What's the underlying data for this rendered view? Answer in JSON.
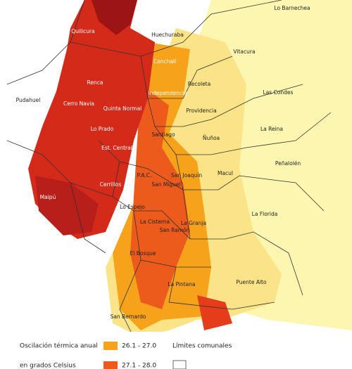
{
  "map": {
    "labels": [
      "Lo Barnechea",
      "Quilicura",
      "Huechuraba",
      "Conchalí",
      "Vitacura",
      "Renca",
      "Recoleta",
      "Independencia",
      "Pudahuel",
      "Cerro Navia",
      "Las Condes",
      "Quinta Normal",
      "Providencia",
      "Lo Prado",
      "Santiago",
      "Ñuñoa",
      "La Reina",
      "Est. Central",
      "Peñalolén",
      "P.A.C.",
      "San Joaquín",
      "Macul",
      "San Miguel",
      "Cerrillos",
      "Maipú",
      "Lo Espejo",
      "La Florida",
      "La Cisterna",
      "La Granja",
      "San Ramón",
      "El Bosque",
      "La Pintana",
      "Puente Alto",
      "San Bernardo"
    ]
  },
  "legend": {
    "title_line1": "Oscilación térmica anual",
    "title_line2": "en grados Celsius",
    "items": [
      {
        "label": "26.1 - 27.0",
        "color": "#f7a21b"
      },
      {
        "label": "27.1 - 28.0",
        "color": "#ec5a1c"
      }
    ],
    "boundary_label": "Límites comunales"
  }
}
